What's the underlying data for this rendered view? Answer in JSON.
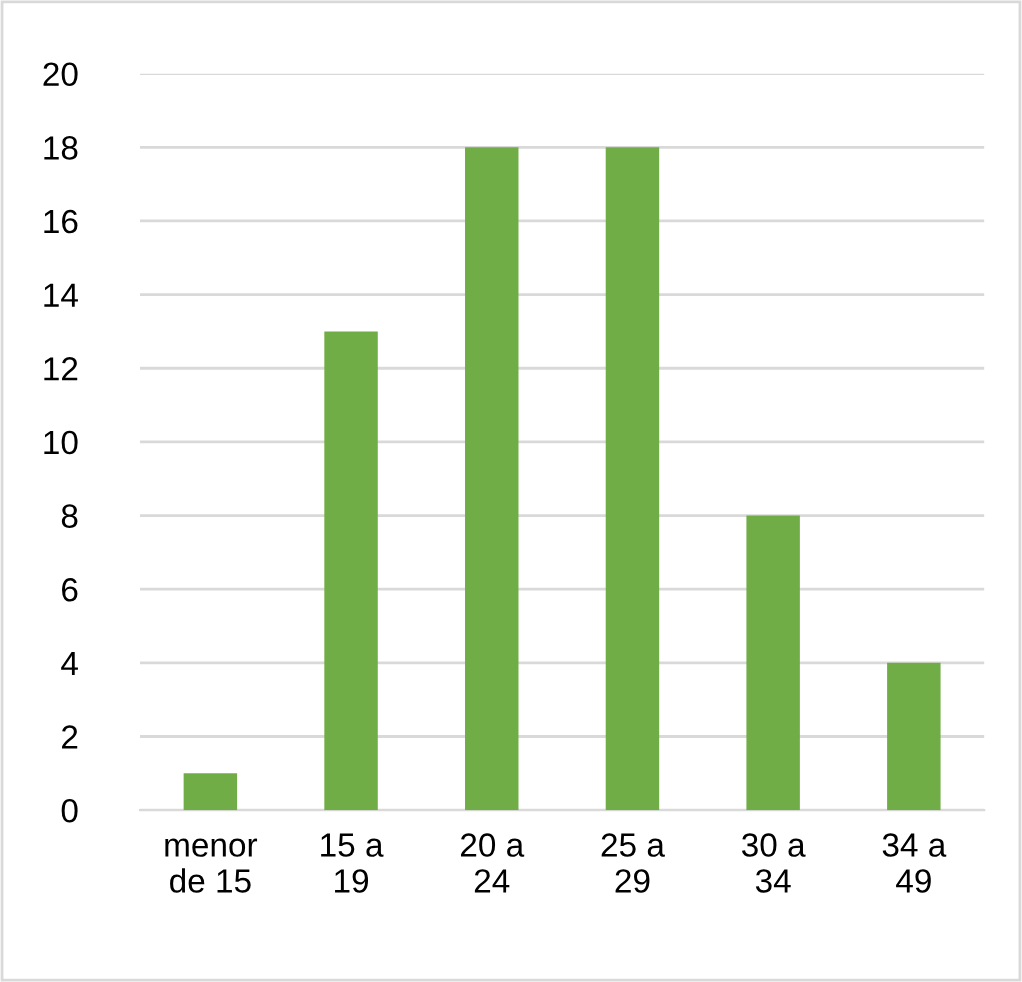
{
  "chart_data": {
    "type": "bar",
    "categories": [
      "menor\nde 15",
      "15 a\n19",
      "20 a\n24",
      "25 a\n29",
      "30 a\n34",
      "34 a\n49"
    ],
    "values": [
      1,
      13,
      18,
      18,
      8,
      4
    ],
    "color": "#70ad47",
    "ylim": [
      0,
      20
    ],
    "yticks": [
      0,
      2,
      4,
      6,
      8,
      10,
      12,
      14,
      16,
      18,
      20
    ],
    "grid": "y",
    "legend": false
  }
}
